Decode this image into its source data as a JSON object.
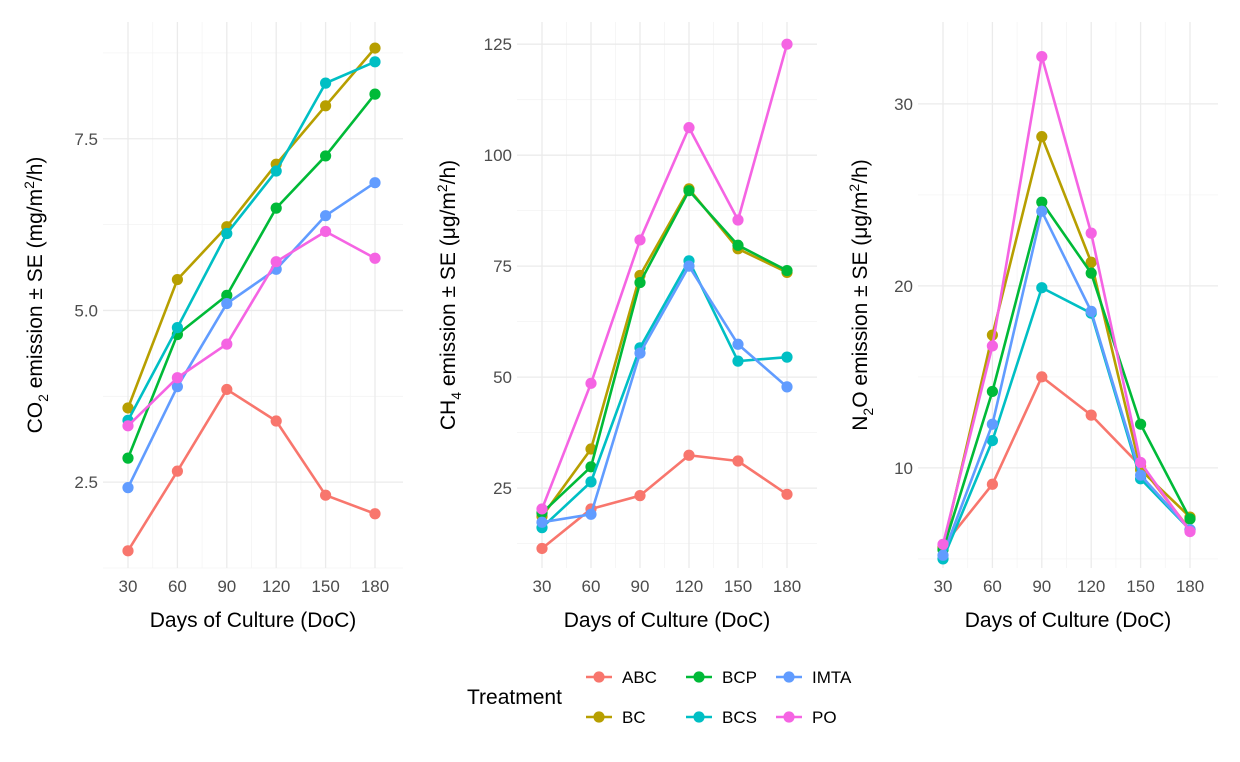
{
  "chart_data": [
    {
      "type": "line",
      "panel": "co2",
      "xlabel": "Days of Culture (DoC)",
      "ylabel": {
        "pre": "CO",
        "sub": "2",
        "mid": " emission ± SE (mg/m",
        "sup": "2",
        "post": "/h)"
      },
      "x": [
        30,
        60,
        90,
        120,
        150,
        180
      ],
      "xticks": [
        "30",
        "60",
        "90",
        "120",
        "150",
        "180"
      ],
      "ylim": [
        1.25,
        9.2
      ],
      "yticks": [
        2.5,
        5.0,
        7.5
      ],
      "ytick_labels": [
        "2.5",
        "5.0",
        "7.5"
      ],
      "minor_yticks": [
        1.25,
        3.75,
        6.25,
        8.75
      ],
      "grid": true,
      "series": [
        {
          "name": "ABC",
          "values": [
            1.5,
            2.66,
            3.85,
            3.39,
            2.31,
            2.04
          ]
        },
        {
          "name": "BC",
          "values": [
            3.58,
            5.45,
            6.22,
            7.13,
            7.98,
            8.82
          ]
        },
        {
          "name": "BCP",
          "values": [
            2.85,
            4.65,
            5.22,
            6.49,
            7.25,
            8.15
          ]
        },
        {
          "name": "BCS",
          "values": [
            3.4,
            4.75,
            6.12,
            7.03,
            8.31,
            8.62
          ]
        },
        {
          "name": "IMTA",
          "values": [
            2.42,
            3.89,
            5.1,
            5.6,
            6.38,
            6.86
          ]
        },
        {
          "name": "PO",
          "values": [
            3.32,
            4.02,
            4.51,
            5.71,
            6.15,
            5.76
          ]
        }
      ]
    },
    {
      "type": "line",
      "panel": "ch4",
      "xlabel": "Days of Culture (DoC)",
      "ylabel": {
        "pre": "CH",
        "sub": "4",
        "mid": " emission ± SE (μg/m",
        "sup": "2",
        "post": "/h)"
      },
      "x": [
        30,
        60,
        90,
        120,
        150,
        180
      ],
      "xticks": [
        "30",
        "60",
        "90",
        "120",
        "150",
        "180"
      ],
      "ylim": [
        7,
        130
      ],
      "yticks": [
        25,
        50,
        75,
        100,
        125
      ],
      "ytick_labels": [
        "25",
        "50",
        "75",
        "100",
        "125"
      ],
      "minor_yticks": [
        12.5,
        37.5,
        62.5,
        87.5,
        112.5
      ],
      "grid": true,
      "series": [
        {
          "name": "ABC",
          "values": [
            11.4,
            20.3,
            23.3,
            32.4,
            31.1,
            23.6
          ]
        },
        {
          "name": "BC",
          "values": [
            18.6,
            33.8,
            72.9,
            92.4,
            78.9,
            73.6
          ]
        },
        {
          "name": "BCP",
          "values": [
            19.4,
            29.8,
            71.3,
            92.0,
            79.7,
            74.0
          ]
        },
        {
          "name": "BCS",
          "values": [
            16.1,
            26.4,
            56.6,
            76.2,
            53.6,
            54.5
          ]
        },
        {
          "name": "IMTA",
          "values": [
            17.3,
            19.1,
            55.4,
            75.0,
            57.4,
            47.8
          ]
        },
        {
          "name": "PO",
          "values": [
            20.3,
            48.6,
            80.9,
            106.2,
            85.4,
            125.0
          ]
        }
      ]
    },
    {
      "type": "line",
      "panel": "n2o",
      "xlabel": "Days of Culture (DoC)",
      "ylabel": {
        "pre": "N",
        "sub": "2",
        "mid": "O emission ± SE (μg/m",
        "sup": "2",
        "post": "/h)"
      },
      "x": [
        30,
        60,
        90,
        120,
        150,
        180
      ],
      "xticks": [
        "30",
        "60",
        "90",
        "120",
        "150",
        "180"
      ],
      "ylim": [
        4.5,
        34.5
      ],
      "yticks": [
        10,
        20,
        30
      ],
      "ytick_labels": [
        "10",
        "20",
        "30"
      ],
      "minor_yticks": [
        5,
        15,
        25
      ],
      "grid": true,
      "series": [
        {
          "name": "ABC",
          "values": [
            5.7,
            9.1,
            15.0,
            12.9,
            10.1,
            6.6
          ]
        },
        {
          "name": "BC",
          "values": [
            5.6,
            17.3,
            28.2,
            21.3,
            9.9,
            7.3
          ]
        },
        {
          "name": "BCP",
          "values": [
            5.5,
            14.2,
            24.6,
            20.7,
            12.4,
            7.2
          ]
        },
        {
          "name": "BCS",
          "values": [
            5.0,
            11.5,
            19.9,
            18.5,
            9.4,
            6.6
          ]
        },
        {
          "name": "IMTA",
          "values": [
            5.2,
            12.4,
            24.1,
            18.6,
            9.6,
            6.6
          ]
        },
        {
          "name": "PO",
          "values": [
            5.8,
            16.7,
            32.6,
            22.9,
            10.3,
            6.5
          ]
        }
      ]
    }
  ],
  "legend": {
    "title": "Treatment",
    "position": "bottom",
    "items": [
      {
        "name": "ABC",
        "color": "#F8766D"
      },
      {
        "name": "BC",
        "color": "#B79F00"
      },
      {
        "name": "BCP",
        "color": "#00BA38"
      },
      {
        "name": "BCS",
        "color": "#00BFC4"
      },
      {
        "name": "IMTA",
        "color": "#619CFF"
      },
      {
        "name": "PO",
        "color": "#F564E3"
      }
    ]
  },
  "colors": {
    "ABC": "#F8766D",
    "BC": "#B79F00",
    "BCP": "#00BA38",
    "BCS": "#00BFC4",
    "IMTA": "#619CFF",
    "PO": "#F564E3"
  }
}
